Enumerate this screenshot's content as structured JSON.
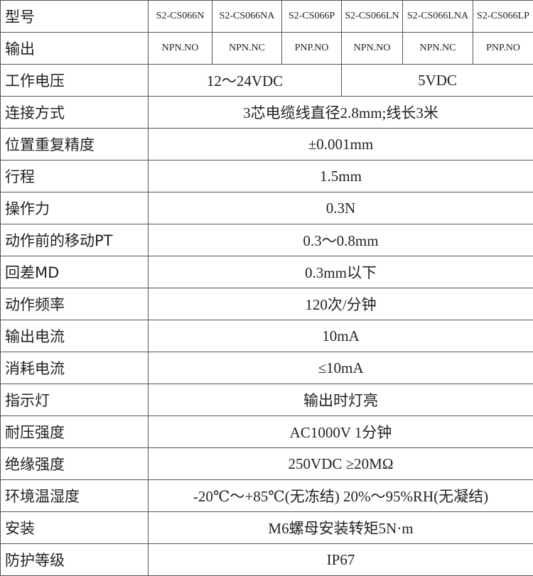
{
  "header": {
    "label": "型号",
    "models": [
      "S2-CS066N",
      "S2-CS066NA",
      "S2-CS066P",
      "S2-CS066LN",
      "S2-CS066LNA",
      "S2-CS066LP"
    ]
  },
  "output_row": {
    "label": "输出",
    "values": [
      "NPN.NO",
      "NPN.NC",
      "PNP.NO",
      "NPN.NO",
      "NPN.NC",
      "PNP.NO"
    ]
  },
  "voltage_row": {
    "label": "工作电压",
    "values": [
      "12～24VDC",
      "5VDC"
    ]
  },
  "rows": [
    {
      "label": "连接方式",
      "value": "3芯电缆线直径2.8mm;线长3米"
    },
    {
      "label": "位置重复精度",
      "value": "±0.001mm"
    },
    {
      "label": "行程",
      "value": "1.5mm"
    },
    {
      "label": "操作力",
      "value": "0.3N"
    },
    {
      "label": "动作前的移动PT",
      "value": "0.3～0.8mm"
    },
    {
      "label": "回差MD",
      "value": "0.3mm以下"
    },
    {
      "label": "动作频率",
      "value": "120次/分钟"
    },
    {
      "label": "输出电流",
      "value": "10mA"
    },
    {
      "label": "消耗电流",
      "value": "≤10mA"
    },
    {
      "label": "指示灯",
      "value": "输出时灯亮"
    },
    {
      "label": "耐压强度",
      "value": "AC1000V  1分钟"
    },
    {
      "label": "绝缘强度",
      "value": "250VDC ≥20MΩ"
    },
    {
      "label": "环境温湿度",
      "value": "-20℃～+85℃(无冻结) 20%～95%RH(无凝结)"
    },
    {
      "label": "安装",
      "value": "M6螺母安装转矩5N·m"
    },
    {
      "label": "防护等级",
      "value": "IP67"
    }
  ]
}
